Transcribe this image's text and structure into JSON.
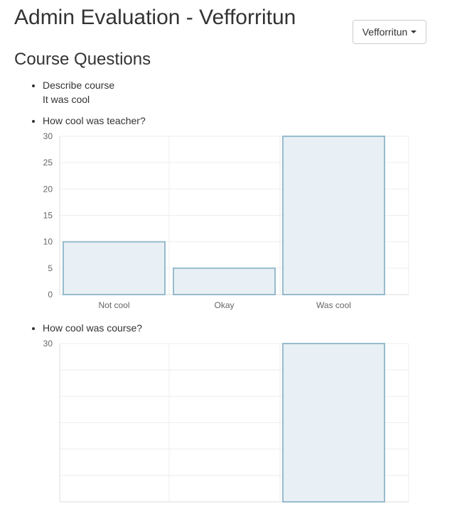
{
  "header": {
    "title": "Admin Evaluation - Vefforritun"
  },
  "dropdown": {
    "label": "Vefforritun"
  },
  "section": {
    "title": "Course Questions"
  },
  "questions": [
    {
      "label": "Describe course",
      "answer": "It was cool"
    },
    {
      "label": "How cool was teacher?"
    },
    {
      "label": "How cool was course?"
    }
  ],
  "colors": {
    "bar_fill": "#e8f0f5",
    "bar_stroke": "#97bbcd",
    "grid": "#eeeeee"
  },
  "chart_data": [
    {
      "type": "bar",
      "categories": [
        "Not cool",
        "Okay",
        "Was cool"
      ],
      "values": [
        10,
        5,
        30
      ],
      "ylim": [
        0,
        30
      ],
      "yticks": [
        0,
        5,
        10,
        15,
        20,
        25,
        30
      ],
      "grid": true
    },
    {
      "type": "bar",
      "categories": [],
      "values": [],
      "ylim": [
        0,
        30
      ],
      "yticks": [
        30
      ],
      "grid": true
    }
  ]
}
